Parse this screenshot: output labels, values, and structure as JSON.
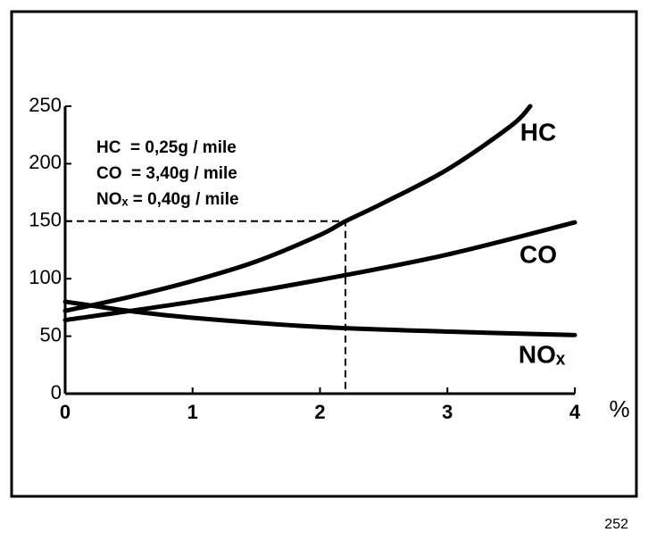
{
  "chart_data": {
    "type": "line",
    "annotations": [
      "HC  = 0,25g / mile",
      "CO  = 3,40g / mile",
      "NOₓ = 0,40g / mile"
    ],
    "x_label": "%",
    "page_number": "252",
    "series": [
      {
        "name": "HC",
        "color": "#000000",
        "x": [
          0,
          0.5,
          1,
          1.5,
          2,
          2.2,
          2.5,
          3,
          3.5,
          3.65
        ],
        "values": [
          72,
          84,
          98,
          115,
          138,
          150,
          166,
          195,
          233,
          250
        ]
      },
      {
        "name": "CO",
        "color": "#000000",
        "x": [
          0,
          1,
          2,
          3,
          4
        ],
        "values": [
          64,
          80,
          99,
          121,
          149
        ]
      },
      {
        "name": "NOₓ",
        "color": "#000000",
        "x": [
          0,
          0.5,
          1,
          2,
          3,
          4
        ],
        "values": [
          80,
          72,
          66,
          58,
          54,
          51
        ]
      }
    ],
    "reference": {
      "x": 2.2,
      "y": 150
    },
    "xlim": [
      0,
      4
    ],
    "xticks": [
      0,
      1,
      2,
      3,
      4
    ],
    "ylim": [
      0,
      250
    ],
    "yticks": [
      0,
      50,
      100,
      150,
      200,
      250
    ]
  }
}
